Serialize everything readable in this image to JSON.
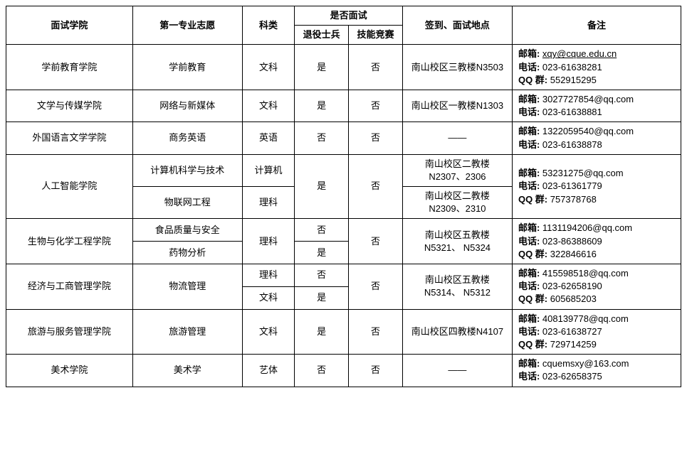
{
  "headers": {
    "college": "面试学院",
    "major": "第一专业志愿",
    "subject": "科类",
    "interview_group": "是否面试",
    "retired": "退役士兵",
    "skill": "技能竞赛",
    "location": "签到、面试地点",
    "remark": "备注"
  },
  "labels": {
    "email": "邮箱:",
    "phone": "电话:",
    "qq": "QQ 群:"
  },
  "rows": [
    {
      "college": "学前教育学院",
      "majors": [
        {
          "major": "学前教育",
          "subject": "文科",
          "retired": "是",
          "skill": "否",
          "location": "南山校区三教楼N3503"
        }
      ],
      "remark": {
        "email": "xqy@cque.edu.cn",
        "email_link": true,
        "phone": "023-61638281",
        "qq": "552915295"
      }
    },
    {
      "college": "文学与传媒学院",
      "majors": [
        {
          "major": "网络与新媒体",
          "subject": "文科",
          "retired": "是",
          "skill": "否",
          "location": "南山校区一教楼N1303"
        }
      ],
      "remark": {
        "email": "3027727854@qq.com",
        "phone": "023-61638881"
      }
    },
    {
      "college": "外国语言文学学院",
      "majors": [
        {
          "major": "商务英语",
          "subject": "英语",
          "retired": "否",
          "skill": "否",
          "location": "——"
        }
      ],
      "remark": {
        "email": "1322059540@qq.com",
        "phone": "023-61638878"
      }
    },
    {
      "college": "人工智能学院",
      "majors": [
        {
          "major": "计算机科学与技术",
          "subject": "计算机",
          "location": "南山校区二教楼N2307、2306"
        },
        {
          "major": "物联网工程",
          "subject": "理科",
          "location": "南山校区二教楼N2309、2310"
        }
      ],
      "shared": {
        "retired": "是",
        "skill": "否"
      },
      "remark": {
        "email": "53231275@qq.com",
        "phone": "023-61361779",
        "qq": "757378768"
      }
    },
    {
      "college": "生物与化学工程学院",
      "majors": [
        {
          "major": "食品质量与安全",
          "retired": "否"
        },
        {
          "major": "药物分析",
          "retired": "是"
        }
      ],
      "shared": {
        "subject": "理科",
        "skill": "否",
        "location": "南山校区五教楼N5321、 N5324"
      },
      "remark": {
        "email": "1131194206@qq.com",
        "phone": "023-86388609",
        "qq": "322846616"
      }
    },
    {
      "college": "经济与工商管理学院",
      "majors": [
        {
          "subject": "理科",
          "retired": "否"
        },
        {
          "subject": "文科",
          "retired": "是"
        }
      ],
      "shared": {
        "major": "物流管理",
        "skill": "否",
        "location": "南山校区五教楼N5314、 N5312"
      },
      "remark": {
        "email": "415598518@qq.com",
        "phone": "023-62658190",
        "qq": "605685203"
      }
    },
    {
      "college": "旅游与服务管理学院",
      "majors": [
        {
          "major": "旅游管理",
          "subject": "文科",
          "retired": "是",
          "skill": "否",
          "location": "南山校区四教楼N4107"
        }
      ],
      "remark": {
        "email": "408139778@qq.com",
        "phone": "023-61638727",
        "qq": "729714259"
      }
    },
    {
      "college": "美术学院",
      "majors": [
        {
          "major": "美术学",
          "subject": "艺体",
          "retired": "否",
          "skill": "否",
          "location": "——"
        }
      ],
      "remark": {
        "email": "cquemsxy@163.com",
        "phone": "023-62658375"
      }
    }
  ]
}
